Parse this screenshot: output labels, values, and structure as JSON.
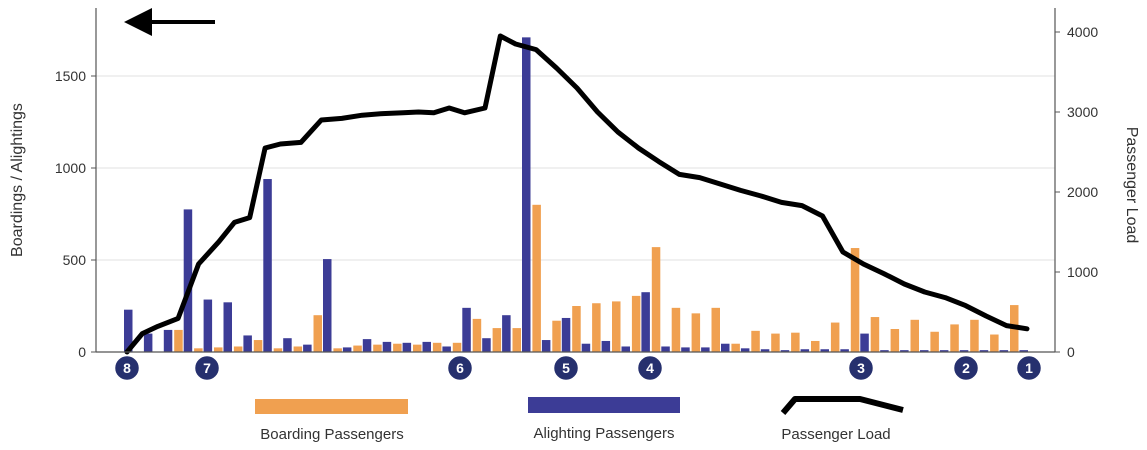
{
  "chart_data": {
    "type": "bar",
    "title": "",
    "ylabel": "Boardings / Alightings",
    "y2label": "Passenger Load",
    "ylim": [
      0,
      1800
    ],
    "y2lim": [
      0,
      4300
    ],
    "yticks": [
      "0",
      "500",
      "1000",
      "1500"
    ],
    "y2ticks": [
      "0",
      "1000",
      "2000",
      "3000",
      "4000"
    ],
    "grid": true,
    "direction_arrow": "left",
    "colors": {
      "boarding": "#f0a050",
      "alighting": "#3c3c96",
      "load": "#000000"
    },
    "stops": [
      {
        "label": "8",
        "index": 0
      },
      {
        "label": "7",
        "index": 5
      },
      {
        "label": "6",
        "index": 21
      },
      {
        "label": "5",
        "index": 28
      },
      {
        "label": "4",
        "index": 33
      },
      {
        "label": "3",
        "index": 46
      },
      {
        "label": "2",
        "index": 51
      },
      {
        "label": "1",
        "index": 55
      }
    ],
    "series": [
      {
        "name": "Boarding Passengers",
        "values": [
          0,
          0,
          0,
          120,
          20,
          25,
          30,
          65,
          20,
          30,
          200,
          20,
          35,
          40,
          45,
          40,
          50,
          50,
          180,
          130,
          130,
          800,
          170,
          250,
          265,
          275,
          305,
          570,
          240,
          210,
          240,
          45,
          115,
          100,
          105,
          60,
          160,
          565,
          190,
          125,
          175,
          110,
          150,
          175,
          95,
          255
        ]
      },
      {
        "name": "Alighting Passengers",
        "values": [
          230,
          100,
          120,
          775,
          285,
          270,
          90,
          940,
          75,
          40,
          505,
          25,
          70,
          55,
          50,
          55,
          30,
          240,
          75,
          200,
          1710,
          65,
          185,
          45,
          60,
          30,
          325,
          30,
          25,
          25,
          45,
          20,
          15,
          10,
          15,
          15,
          15,
          100,
          10,
          10,
          10,
          10,
          10,
          10,
          10,
          10
        ]
      },
      {
        "name": "Passenger Load",
        "points": [
          [
            0,
            0
          ],
          [
            1.5,
            230
          ],
          [
            3,
            320
          ],
          [
            5,
            420
          ],
          [
            7,
            1100
          ],
          [
            9,
            1380
          ],
          [
            10.5,
            1620
          ],
          [
            12,
            1680
          ],
          [
            13.5,
            2550
          ],
          [
            15,
            2600
          ],
          [
            17,
            2620
          ],
          [
            19,
            2900
          ],
          [
            21,
            2920
          ],
          [
            23,
            2960
          ],
          [
            25,
            2980
          ],
          [
            27,
            2990
          ],
          [
            28.5,
            3000
          ],
          [
            30,
            2990
          ],
          [
            31.5,
            3050
          ],
          [
            33,
            2990
          ],
          [
            35,
            3050
          ],
          [
            36.5,
            3950
          ],
          [
            38,
            3850
          ],
          [
            40,
            3780
          ],
          [
            42,
            3550
          ],
          [
            44,
            3300
          ],
          [
            46,
            3000
          ],
          [
            48,
            2750
          ],
          [
            50,
            2550
          ],
          [
            52,
            2380
          ],
          [
            54,
            2220
          ],
          [
            56,
            2180
          ],
          [
            58,
            2100
          ],
          [
            60,
            2020
          ],
          [
            62,
            1950
          ],
          [
            64,
            1870
          ],
          [
            66,
            1830
          ],
          [
            68,
            1700
          ],
          [
            70,
            1250
          ],
          [
            72,
            1100
          ],
          [
            74,
            980
          ],
          [
            76,
            850
          ],
          [
            78,
            750
          ],
          [
            80,
            680
          ],
          [
            82,
            580
          ],
          [
            84,
            450
          ],
          [
            86,
            330
          ],
          [
            88,
            290
          ]
        ]
      }
    ]
  },
  "legend": {
    "boarding_label": "Boarding Passengers",
    "alighting_label": "Alighting Passengers",
    "load_label": "Passenger Load"
  }
}
